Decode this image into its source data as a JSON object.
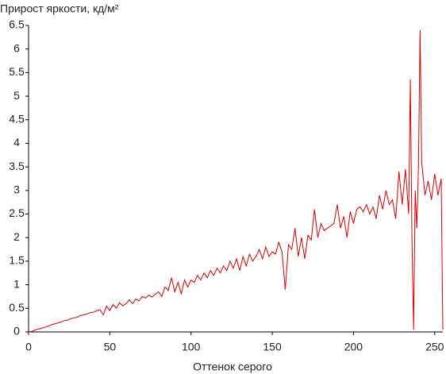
{
  "chart_data": {
    "type": "line",
    "y_label": "Прирост яркости, кд/м²",
    "x_label": "Оттенок серого",
    "xlim": [
      0,
      255
    ],
    "xticks": [
      0,
      50,
      100,
      150,
      200,
      250
    ],
    "ylim": [
      0,
      6.5
    ],
    "yticks": [
      0,
      0.5,
      1,
      1.5,
      2,
      2.5,
      3,
      3.5,
      4,
      4.5,
      5,
      5.5,
      6,
      6.5
    ],
    "color": "#d40000",
    "x": [
      0,
      2,
      4,
      6,
      8,
      10,
      12,
      14,
      16,
      18,
      20,
      22,
      24,
      26,
      28,
      30,
      32,
      34,
      36,
      38,
      40,
      42,
      44,
      46,
      48,
      50,
      52,
      54,
      56,
      58,
      60,
      62,
      64,
      66,
      68,
      70,
      72,
      74,
      76,
      78,
      80,
      82,
      84,
      86,
      88,
      90,
      92,
      94,
      96,
      98,
      100,
      102,
      104,
      106,
      108,
      110,
      112,
      114,
      116,
      118,
      120,
      122,
      124,
      126,
      128,
      130,
      132,
      134,
      136,
      138,
      140,
      142,
      144,
      146,
      148,
      150,
      152,
      154,
      156,
      158,
      160,
      162,
      164,
      166,
      168,
      170,
      172,
      174,
      176,
      178,
      180,
      182,
      184,
      186,
      188,
      190,
      192,
      194,
      196,
      198,
      200,
      202,
      204,
      206,
      208,
      210,
      212,
      214,
      216,
      218,
      220,
      222,
      224,
      226,
      228,
      230,
      232,
      234,
      235,
      236,
      237,
      238,
      239,
      240,
      241,
      242,
      244,
      246,
      248,
      250,
      252,
      254,
      255
    ],
    "values": [
      0,
      0.01,
      0.04,
      0.06,
      0.08,
      0.1,
      0.12,
      0.15,
      0.17,
      0.19,
      0.21,
      0.24,
      0.25,
      0.28,
      0.3,
      0.31,
      0.35,
      0.36,
      0.38,
      0.41,
      0.42,
      0.45,
      0.47,
      0.36,
      0.55,
      0.45,
      0.58,
      0.5,
      0.62,
      0.55,
      0.6,
      0.68,
      0.6,
      0.7,
      0.66,
      0.75,
      0.72,
      0.78,
      0.74,
      0.8,
      0.85,
      0.75,
      0.95,
      0.88,
      1.15,
      0.85,
      1.05,
      0.8,
      1.1,
      0.95,
      1.1,
      1.05,
      1.2,
      1.1,
      1.25,
      1.15,
      1.3,
      1.2,
      1.35,
      1.25,
      1.4,
      1.3,
      1.5,
      1.35,
      1.55,
      1.3,
      1.6,
      1.4,
      1.65,
      1.5,
      1.6,
      1.75,
      1.55,
      1.8,
      1.6,
      1.7,
      1.65,
      1.9,
      1.7,
      0.9,
      1.85,
      1.75,
      2.2,
      1.6,
      2.0,
      1.55,
      2.05,
      1.95,
      2.6,
      2.0,
      2.3,
      2.15,
      2.2,
      2.25,
      2.3,
      2.7,
      2.2,
      2.45,
      2.0,
      2.55,
      2.3,
      2.6,
      2.65,
      2.55,
      2.7,
      2.5,
      2.65,
      2.4,
      2.9,
      2.6,
      3.0,
      2.7,
      2.8,
      2.4,
      3.4,
      2.7,
      3.45,
      2.5,
      5.35,
      2.0,
      0.05,
      3.0,
      2.2,
      3.5,
      6.4,
      3.6,
      2.9,
      3.2,
      2.8,
      3.35,
      2.9,
      3.25,
      0.05
    ]
  }
}
